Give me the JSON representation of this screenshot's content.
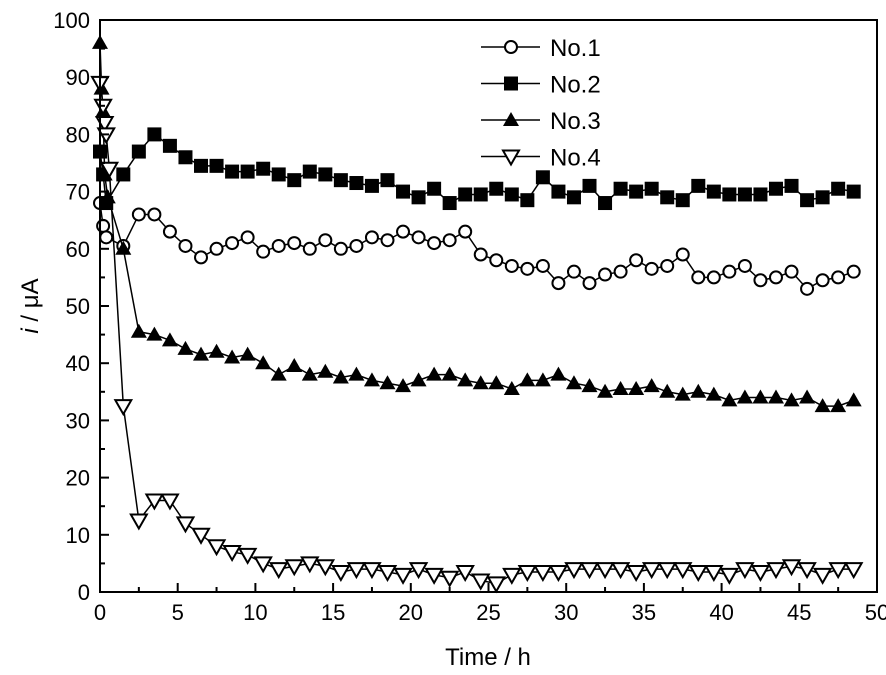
{
  "chart_data": {
    "type": "line",
    "title": "",
    "xlabel": "Time / h",
    "ylabel_italic": "i",
    "ylabel_unit": " / μA",
    "xlim": [
      0,
      50
    ],
    "ylim": [
      0,
      100
    ],
    "xticks": [
      0,
      5,
      10,
      15,
      20,
      25,
      30,
      35,
      40,
      45,
      50
    ],
    "yticks": [
      0,
      10,
      20,
      30,
      40,
      50,
      60,
      70,
      80,
      90,
      100
    ],
    "grid": false,
    "legend_position": "top-center",
    "series": [
      {
        "name": "No.1",
        "marker": "open-circle",
        "x": [
          0,
          0.2,
          0.4,
          1.5,
          2.5,
          3.5,
          4.5,
          5.5,
          6.5,
          7.5,
          8.5,
          9.5,
          10.5,
          11.5,
          12.5,
          13.5,
          14.5,
          15.5,
          16.5,
          17.5,
          18.5,
          19.5,
          20.5,
          21.5,
          22.5,
          23.5,
          24.5,
          25.5,
          26.5,
          27.5,
          28.5,
          29.5,
          30.5,
          31.5,
          32.5,
          33.5,
          34.5,
          35.5,
          36.5,
          37.5,
          38.5,
          39.5,
          40.5,
          41.5,
          42.5,
          43.5,
          44.5,
          45.5,
          46.5,
          47.5,
          48.5
        ],
        "y": [
          68,
          64,
          62,
          60.5,
          66,
          66,
          63,
          60.5,
          58.5,
          60,
          61,
          62,
          59.5,
          60.5,
          61,
          60,
          61.5,
          60,
          60.5,
          62,
          61.5,
          63,
          62,
          61,
          61.5,
          63,
          59,
          58,
          57,
          56.5,
          57,
          54,
          56,
          54,
          55.5,
          56,
          58,
          56.5,
          57,
          59,
          55,
          55,
          56,
          57,
          54.5,
          55,
          56,
          53,
          54.5,
          55,
          56
        ]
      },
      {
        "name": "No.2",
        "marker": "filled-square",
        "x": [
          0,
          0.2,
          0.4,
          1.5,
          2.5,
          3.5,
          4.5,
          5.5,
          6.5,
          7.5,
          8.5,
          9.5,
          10.5,
          11.5,
          12.5,
          13.5,
          14.5,
          15.5,
          16.5,
          17.5,
          18.5,
          19.5,
          20.5,
          21.5,
          22.5,
          23.5,
          24.5,
          25.5,
          26.5,
          27.5,
          28.5,
          29.5,
          30.5,
          31.5,
          32.5,
          33.5,
          34.5,
          35.5,
          36.5,
          37.5,
          38.5,
          39.5,
          40.5,
          41.5,
          42.5,
          43.5,
          44.5,
          45.5,
          46.5,
          47.5,
          48.5
        ],
        "y": [
          77,
          73,
          68,
          73,
          77,
          80,
          78,
          76,
          74.5,
          74.5,
          73.5,
          73.5,
          74,
          73,
          72,
          73.5,
          73,
          72,
          71.5,
          71,
          72,
          70,
          69,
          70.5,
          68,
          69.5,
          69.5,
          70.5,
          69.5,
          68.5,
          72.5,
          70,
          69,
          71,
          68,
          70.5,
          70,
          70.5,
          69,
          68.5,
          71,
          70,
          69.5,
          69.5,
          69.5,
          70.5,
          71,
          68.5,
          69,
          70.5,
          70
        ]
      },
      {
        "name": "No.3",
        "marker": "filled-triangle-up",
        "x": [
          0,
          0.1,
          0.2,
          0.3,
          0.5,
          1.5,
          2.5,
          3.5,
          4.5,
          5.5,
          6.5,
          7.5,
          8.5,
          9.5,
          10.5,
          11.5,
          12.5,
          13.5,
          14.5,
          15.5,
          16.5,
          17.5,
          18.5,
          19.5,
          20.5,
          21.5,
          22.5,
          23.5,
          24.5,
          25.5,
          26.5,
          27.5,
          28.5,
          29.5,
          30.5,
          31.5,
          32.5,
          33.5,
          34.5,
          35.5,
          36.5,
          37.5,
          38.5,
          39.5,
          40.5,
          41.5,
          42.5,
          43.5,
          44.5,
          45.5,
          46.5,
          47.5,
          48.5
        ],
        "y": [
          96,
          88,
          84,
          73,
          69,
          60,
          45.5,
          45,
          44,
          42.5,
          41.5,
          42,
          41,
          41.5,
          40,
          38,
          39.5,
          38,
          38.5,
          37.5,
          38,
          37,
          36.5,
          36,
          37,
          38,
          38,
          37,
          36.5,
          36.5,
          35.5,
          37,
          37,
          38,
          36.5,
          36,
          35,
          35.5,
          35.5,
          36,
          35,
          34.5,
          35,
          34.5,
          33.5,
          34,
          34,
          34,
          33.5,
          34,
          32.5,
          32.5,
          33.5
        ]
      },
      {
        "name": "No.4",
        "marker": "open-triangle-down",
        "x": [
          0,
          0.2,
          0.3,
          0.4,
          0.6,
          1.5,
          2.5,
          3.5,
          4.5,
          5.5,
          6.5,
          7.5,
          8.5,
          9.5,
          10.5,
          11.5,
          12.5,
          13.5,
          14.5,
          15.5,
          16.5,
          17.5,
          18.5,
          19.5,
          20.5,
          21.5,
          22.5,
          23.5,
          24.5,
          25.5,
          26.5,
          27.5,
          28.5,
          29.5,
          30.5,
          31.5,
          32.5,
          33.5,
          34.5,
          35.5,
          36.5,
          37.5,
          38.5,
          39.5,
          40.5,
          41.5,
          42.5,
          43.5,
          44.5,
          45.5,
          46.5,
          47.5,
          48.5
        ],
        "y": [
          89,
          85,
          82,
          80,
          74,
          32.5,
          12.5,
          16,
          16,
          12,
          10,
          8,
          7,
          6.5,
          5,
          4,
          4.5,
          5,
          4.5,
          3.5,
          4,
          4,
          3.5,
          3,
          4,
          3,
          2.5,
          3.5,
          2,
          1.5,
          3,
          3.5,
          3.5,
          3.5,
          4,
          4,
          4,
          4,
          3.5,
          4,
          4,
          4,
          3.5,
          3.5,
          3,
          4,
          3.5,
          4,
          4.5,
          4,
          3,
          4,
          4
        ]
      }
    ]
  }
}
